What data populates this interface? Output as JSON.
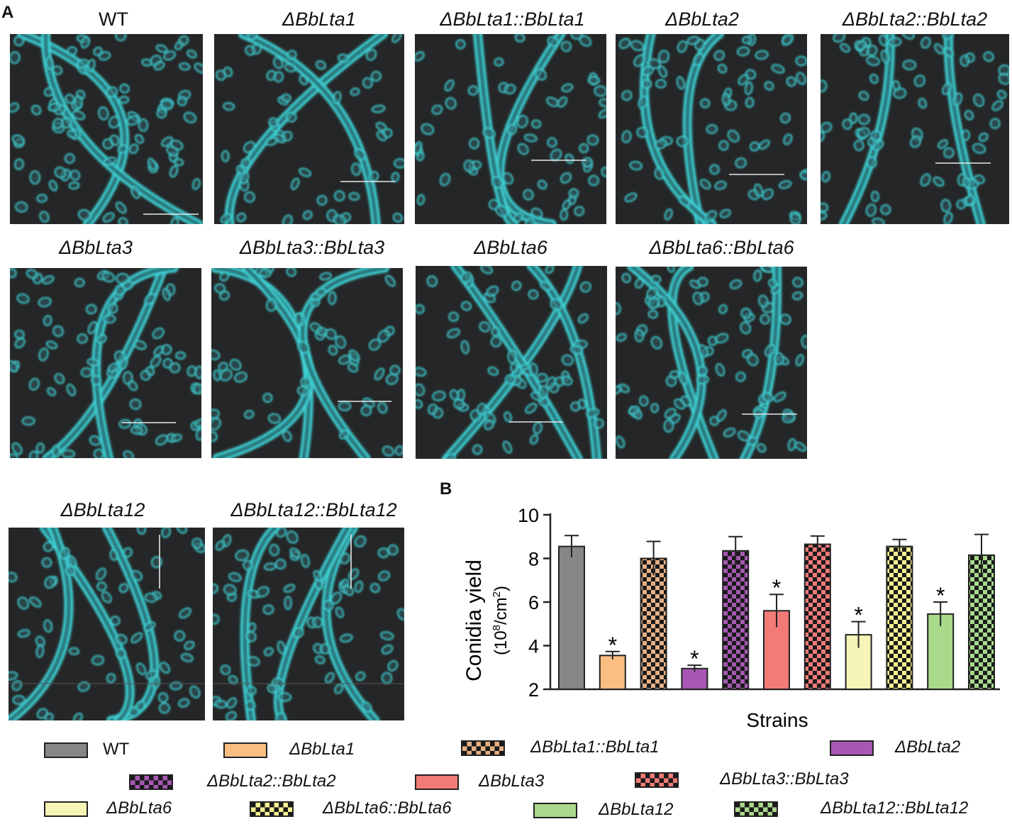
{
  "panel_a_letter": "A",
  "panel_b_letter": "B",
  "micrographs": [
    {
      "label": "WT",
      "italic": false
    },
    {
      "label": "ΔBbLta1",
      "italic": true
    },
    {
      "label": "ΔBbLta1::BbLta1",
      "italic": true
    },
    {
      "label": "ΔBbLta2",
      "italic": true
    },
    {
      "label": "ΔBbLta2::BbLta2",
      "italic": true
    },
    {
      "label": "ΔBbLta3",
      "italic": true
    },
    {
      "label": "ΔBbLta3::BbLta3",
      "italic": true
    },
    {
      "label": "ΔBbLta6",
      "italic": true
    },
    {
      "label": "ΔBbLta6::BbLta6",
      "italic": true
    },
    {
      "label": "ΔBbLta12",
      "italic": true
    },
    {
      "label": "ΔBbLta12::BbLta12",
      "italic": true
    }
  ],
  "colors": {
    "micrograph_bg": "#252627",
    "fluorescence": "#3fd3d6",
    "scale_bar": "#e8e8e8"
  },
  "chart_data": {
    "type": "bar",
    "ylabel_line1": "Conidia yield",
    "ylabel_line2_pre": "(10",
    "ylabel_sup1": "8",
    "ylabel_line2_mid": "/cm",
    "ylabel_sup2": "2",
    "ylabel_line2_post": ")",
    "xlabel": "Strains",
    "ylim": [
      2,
      10
    ],
    "yticks": [
      2,
      4,
      6,
      8,
      10
    ],
    "bars": [
      {
        "name": "WT",
        "value": 8.55,
        "error": 0.5,
        "color": "#868686",
        "pattern": false,
        "significant": false
      },
      {
        "name": "ΔBbLta1",
        "value": 3.55,
        "error": 0.18,
        "color": "#fbbd82",
        "pattern": false,
        "significant": true
      },
      {
        "name": "ΔBbLta1::BbLta1",
        "value": 8.0,
        "error": 0.78,
        "color": "#e8b083",
        "pattern": true,
        "significant": false
      },
      {
        "name": "ΔBbLta2",
        "value": 2.95,
        "error": 0.15,
        "color": "#a758b3",
        "pattern": false,
        "significant": true
      },
      {
        "name": "ΔBbLta2::BbLta2",
        "value": 8.35,
        "error": 0.65,
        "color": "#a758b3",
        "pattern": true,
        "significant": false
      },
      {
        "name": "ΔBbLta3",
        "value": 5.6,
        "error": 0.75,
        "color": "#f37b77",
        "pattern": false,
        "significant": true
      },
      {
        "name": "ΔBbLta3::BbLta3",
        "value": 8.65,
        "error": 0.38,
        "color": "#f37b77",
        "pattern": true,
        "significant": false
      },
      {
        "name": "ΔBbLta6",
        "value": 4.5,
        "error": 0.6,
        "color": "#f6f4b6",
        "pattern": false,
        "significant": true
      },
      {
        "name": "ΔBbLta6::BbLta6",
        "value": 8.55,
        "error": 0.32,
        "color": "#f8f28f",
        "pattern": true,
        "significant": false
      },
      {
        "name": "ΔBbLta12",
        "value": 5.45,
        "error": 0.55,
        "color": "#a9d98b",
        "pattern": false,
        "significant": true
      },
      {
        "name": "ΔBbLta12::BbLta12",
        "value": 8.15,
        "error": 0.95,
        "color": "#a9d98b",
        "pattern": true,
        "significant": false
      }
    ],
    "significance_marker": "*"
  },
  "legend": [
    {
      "label": "WT",
      "italic": false
    },
    {
      "label": "ΔBbLta1",
      "italic": true
    },
    {
      "label": "ΔBbLta1::BbLta1",
      "italic": true
    },
    {
      "label": "ΔBbLta2",
      "italic": true
    },
    {
      "label": "ΔBbLta2::BbLta2",
      "italic": true
    },
    {
      "label": "ΔBbLta3",
      "italic": true
    },
    {
      "label": "ΔBbLta3::BbLta3",
      "italic": true
    },
    {
      "label": "ΔBbLta6",
      "italic": true
    },
    {
      "label": "ΔBbLta6::BbLta6",
      "italic": true
    },
    {
      "label": "ΔBbLta12",
      "italic": true
    },
    {
      "label": "ΔBbLta12::BbLta12",
      "italic": true
    }
  ]
}
